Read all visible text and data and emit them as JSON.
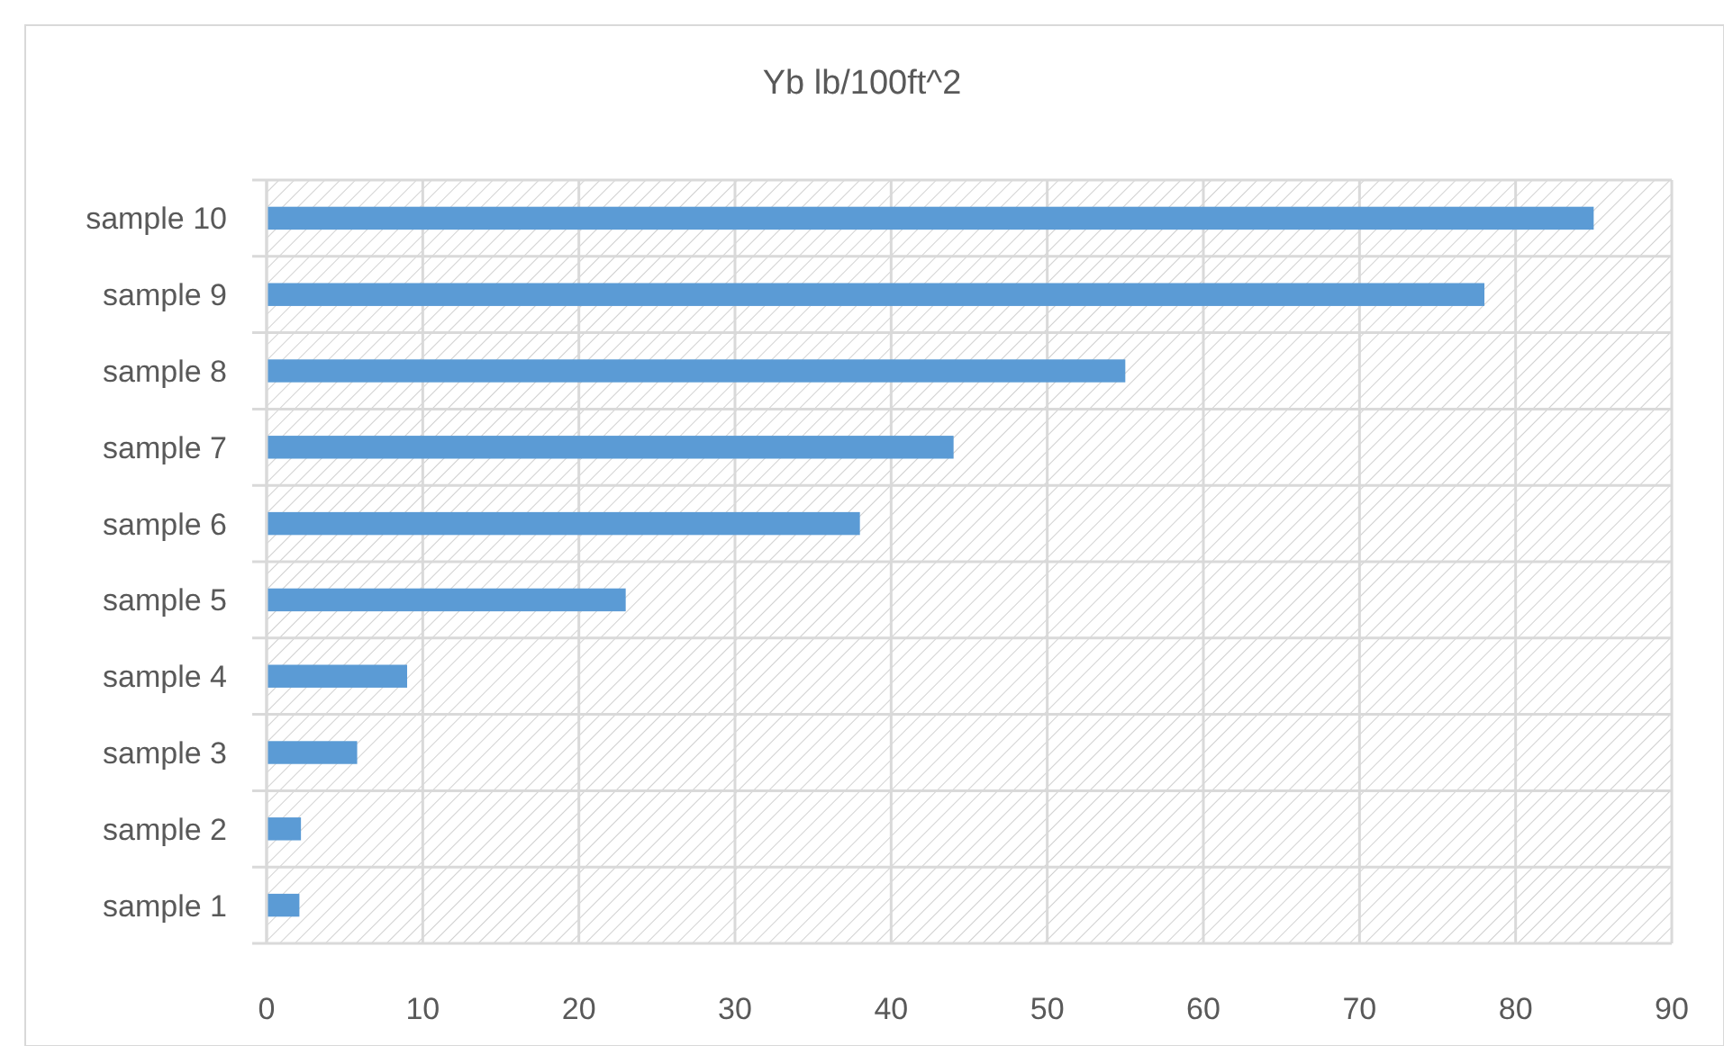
{
  "chart_data": {
    "type": "bar",
    "orientation": "horizontal",
    "title": "Yb lb/100ft^2",
    "categories": [
      "sample 10",
      "sample 9",
      "sample 8",
      "sample 7",
      "sample 6",
      "sample 5",
      "sample 4",
      "sample 3",
      "sample 2",
      "sample 1"
    ],
    "values": [
      85,
      78,
      55,
      44,
      38,
      23,
      9,
      5.8,
      2.2,
      2.1
    ],
    "color": "#5b9bd5",
    "xlim": [
      0,
      90
    ],
    "xticks": [
      0,
      10,
      20,
      30,
      40,
      50,
      60,
      70,
      80,
      90
    ],
    "grid": true
  }
}
